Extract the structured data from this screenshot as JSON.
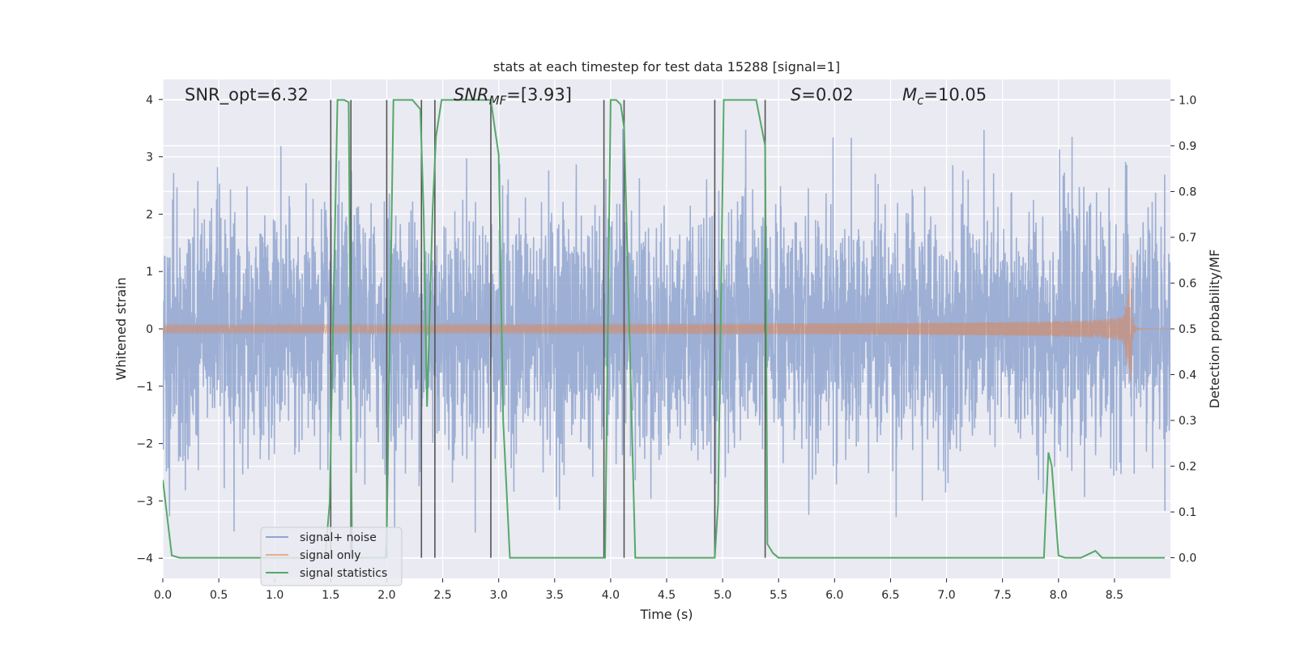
{
  "chart_data": {
    "type": "line",
    "title": "stats at each timestep for test data 15288 [signal=1]",
    "xlabel": "Time (s)",
    "ylabel": "Whitened strain",
    "y2label": "Detection probability/MF",
    "xlim": [
      0,
      9.0
    ],
    "ylim": [
      -4.35,
      4.35
    ],
    "y2lim": [
      -0.045,
      1.045
    ],
    "xticks": [
      "0.0",
      "0.5",
      "1.0",
      "1.5",
      "2.0",
      "2.5",
      "3.0",
      "3.5",
      "4.0",
      "4.5",
      "5.0",
      "5.5",
      "6.0",
      "6.5",
      "7.0",
      "7.5",
      "8.0",
      "8.5"
    ],
    "yticks": [
      "−4",
      "−3",
      "−2",
      "−1",
      "0",
      "1",
      "2",
      "3",
      "4"
    ],
    "y2ticks": [
      "0.0",
      "0.1",
      "0.2",
      "0.3",
      "0.4",
      "0.5",
      "0.6",
      "0.7",
      "0.8",
      "0.9",
      "1.0"
    ],
    "grid": true,
    "legend_placement": "lower-left",
    "annotations": {
      "snr_opt": "SNR_opt=6.32",
      "snr_mf_main": "SNR",
      "snr_mf_sub": "MF",
      "snr_mf_value": "=[3.93]",
      "s_var": "S",
      "s_value": "=0.02",
      "mc_var": "M",
      "mc_sub": "c",
      "mc_value": "=10.05"
    },
    "series": [
      {
        "name": "signal+ noise",
        "color": "#8fa5cf",
        "kind": "noise",
        "amplitude_envelope": [
          -3.7,
          3.7
        ]
      },
      {
        "name": "signal only",
        "color": "#dd8452",
        "kind": "chirp",
        "t_merge": 8.66,
        "peak_amplitude": 1.3,
        "min_amplitude": -0.9
      },
      {
        "name": "signal statistics",
        "color": "#55a868",
        "kind": "probability",
        "x": [
          0.0,
          0.08,
          0.15,
          0.4,
          1.0,
          1.45,
          1.49,
          1.56,
          1.62,
          1.66,
          1.69,
          1.72,
          1.75,
          1.99,
          2.0,
          2.06,
          2.23,
          2.3,
          2.33,
          2.36,
          2.41,
          2.44,
          2.49,
          2.54,
          2.85,
          2.93,
          2.97,
          3.0,
          3.04,
          3.1,
          3.9,
          3.95,
          4.0,
          4.05,
          4.09,
          4.12,
          4.22,
          4.93,
          4.96,
          5.01,
          5.3,
          5.38,
          5.4,
          5.45,
          5.5,
          7.87,
          7.91,
          7.94,
          8.0,
          8.06,
          8.2,
          8.33,
          8.39,
          8.8,
          8.95
        ],
        "y": [
          0.17,
          0.005,
          0.0,
          0.0,
          0.0,
          0.0,
          0.12,
          1.0,
          1.0,
          0.995,
          0.01,
          0.0,
          0.0,
          0.0,
          0.05,
          1.0,
          1.0,
          0.98,
          0.75,
          0.33,
          0.76,
          0.92,
          1.0,
          1.0,
          1.0,
          1.0,
          0.93,
          0.88,
          0.3,
          0.0,
          0.0,
          0.0,
          1.0,
          1.0,
          0.99,
          0.94,
          0.0,
          0.0,
          0.12,
          1.0,
          1.0,
          0.9,
          0.03,
          0.01,
          0.0,
          0.0,
          0.23,
          0.2,
          0.005,
          0.0,
          0.0,
          0.015,
          0.0,
          0.0,
          0.0
        ]
      }
    ],
    "vertical_markers": [
      1.5,
      1.68,
      2.0,
      2.31,
      2.43,
      2.93,
      3.94,
      4.12,
      4.93,
      5.38
    ]
  }
}
